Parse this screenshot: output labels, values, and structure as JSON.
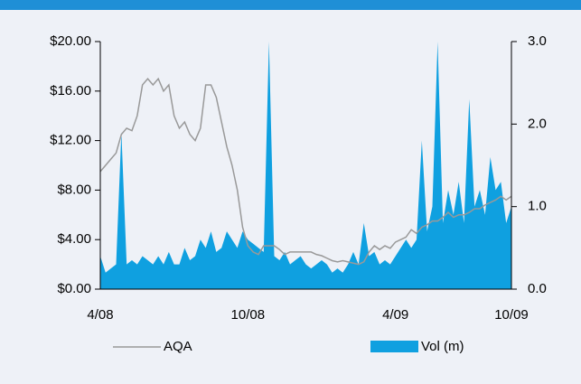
{
  "chart_data": {
    "type": "price-volume",
    "categories": [
      "4/08",
      null,
      null,
      null,
      null,
      null,
      null,
      null,
      null,
      null,
      null,
      null,
      null,
      null,
      null,
      null,
      null,
      null,
      null,
      null,
      null,
      null,
      null,
      null,
      null,
      null,
      null,
      null,
      "10/08",
      null,
      null,
      null,
      null,
      null,
      null,
      null,
      null,
      null,
      null,
      null,
      null,
      null,
      null,
      null,
      null,
      null,
      null,
      null,
      null,
      null,
      null,
      null,
      null,
      null,
      null,
      null,
      "4/09",
      null,
      null,
      null,
      null,
      null,
      null,
      null,
      null,
      null,
      null,
      null,
      null,
      null,
      null,
      null,
      null,
      null,
      null,
      null,
      null,
      null,
      "10/09"
    ],
    "series": [
      {
        "name": "AQA",
        "kind": "line",
        "color": "#999999",
        "values": [
          9.5,
          10,
          10.5,
          11,
          12.5,
          13,
          12.8,
          14,
          16.5,
          17,
          16.5,
          17,
          16,
          16.5,
          14,
          13,
          13.5,
          12.5,
          12,
          13,
          16.5,
          16.5,
          15.5,
          13.5,
          11.5,
          10,
          8,
          5,
          3.5,
          3,
          2.8,
          3.5,
          3.5,
          3.5,
          3.2,
          2.8,
          3,
          3,
          3,
          3,
          3,
          2.8,
          2.7,
          2.5,
          2.3,
          2.2,
          2.3,
          2.2,
          2.1,
          2,
          2.2,
          3,
          3.5,
          3.2,
          3.5,
          3.3,
          3.8,
          4,
          4.2,
          4.8,
          4.5,
          5,
          5.2,
          5.5,
          5.5,
          5.8,
          6.2,
          5.8,
          6,
          6,
          6.2,
          6.5,
          6.5,
          6.8,
          7,
          7.2,
          7.5,
          7.2,
          7.5
        ]
      },
      {
        "name": "Vol (m)",
        "kind": "area",
        "axis": "y2",
        "color": "#0fa0e0",
        "values": [
          0.4,
          0.2,
          0.25,
          0.3,
          1.9,
          0.3,
          0.35,
          0.3,
          0.4,
          0.35,
          0.3,
          0.4,
          0.3,
          0.45,
          0.3,
          0.3,
          0.5,
          0.35,
          0.4,
          0.6,
          0.5,
          0.7,
          0.45,
          0.5,
          0.7,
          0.6,
          0.5,
          0.7,
          0.6,
          0.55,
          0.5,
          0.45,
          3.0,
          0.4,
          0.35,
          0.45,
          0.3,
          0.35,
          0.4,
          0.3,
          0.25,
          0.3,
          0.35,
          0.3,
          0.2,
          0.25,
          0.2,
          0.3,
          0.45,
          0.3,
          0.8,
          0.4,
          0.45,
          0.3,
          0.35,
          0.3,
          0.4,
          0.5,
          0.6,
          0.5,
          0.6,
          1.8,
          0.7,
          1.0,
          3.0,
          0.8,
          1.2,
          0.9,
          1.3,
          0.8,
          2.3,
          1.0,
          1.2,
          0.9,
          1.6,
          1.2,
          1.3,
          0.8,
          1.0
        ]
      }
    ],
    "ylim": [
      0,
      20
    ],
    "yticks": [
      {
        "value": 0,
        "label": "$0.00"
      },
      {
        "value": 4,
        "label": "$4.00"
      },
      {
        "value": 8,
        "label": "$8.00"
      },
      {
        "value": 12,
        "label": "$12.00"
      },
      {
        "value": 16,
        "label": "$16.00"
      },
      {
        "value": 20,
        "label": "$20.00"
      }
    ],
    "y2lim": [
      0,
      3
    ],
    "y2ticks": [
      {
        "value": 0,
        "label": "0.0"
      },
      {
        "value": 1,
        "label": "1.0"
      },
      {
        "value": 2,
        "label": "2.0"
      },
      {
        "value": 3,
        "label": "3.0"
      }
    ]
  }
}
